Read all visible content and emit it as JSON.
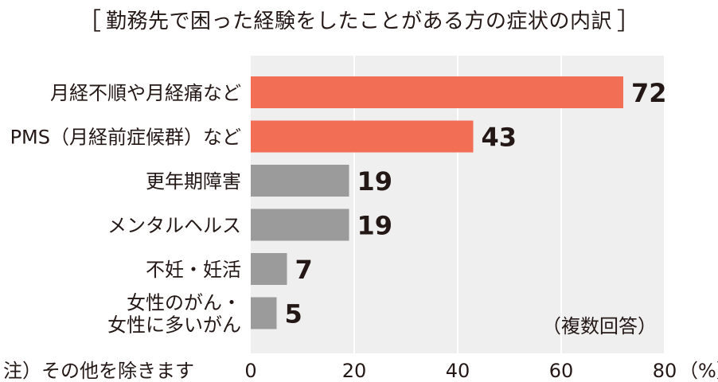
{
  "chart_data": {
    "type": "bar",
    "orientation": "horizontal",
    "title": "勤務先で困った経験をしたことがある方の症状の内訳",
    "categories": [
      [
        "月経不順や月経痛など"
      ],
      [
        "PMS（月経前症候群）など"
      ],
      [
        "更年期障害"
      ],
      [
        "メンタルヘルス"
      ],
      [
        "不妊・妊活"
      ],
      [
        "女性のがん・",
        "女性に多いがん"
      ]
    ],
    "values": [
      72,
      43,
      19,
      19,
      7,
      5
    ],
    "value_labels": [
      "72",
      "43",
      "19",
      "19",
      "7",
      "5"
    ],
    "bar_colors": [
      "#f26f56",
      "#f26f56",
      "#9b9b9b",
      "#9b9b9b",
      "#9b9b9b",
      "#9b9b9b"
    ],
    "xlim": [
      0,
      80
    ],
    "ticks": [
      0,
      20,
      40,
      60,
      80
    ],
    "tick_labels": [
      "0",
      "20",
      "40",
      "60",
      "80"
    ],
    "x_unit": "（%）",
    "annotation": "（複数回答）",
    "footnote": "注）その他を除きます",
    "grid": true,
    "plot_background": "#efefef"
  }
}
